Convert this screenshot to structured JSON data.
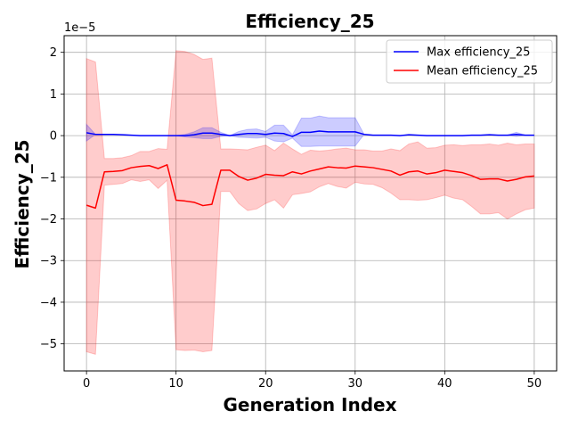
{
  "chart_data": {
    "type": "line",
    "title": "Efficiency_25",
    "xlabel": "Generation Index",
    "ylabel": "Efficiency_25",
    "y_offset_label": "1e−5",
    "xlim": [
      -2.5,
      52.5
    ],
    "ylim": [
      -5.65,
      2.4
    ],
    "xticks": [
      0,
      10,
      20,
      30,
      40,
      50
    ],
    "xtick_labels": [
      "0",
      "10",
      "20",
      "30",
      "40",
      "50"
    ],
    "yticks": [
      -5,
      -4,
      -3,
      -2,
      -1,
      0,
      1,
      2
    ],
    "ytick_labels": [
      "−5",
      "−4",
      "−3",
      "−2",
      "−1",
      "0",
      "1",
      "2"
    ],
    "grid": true,
    "legend_position": "top-right",
    "colors": {
      "max": "#0000ff",
      "mean": "#ff0000",
      "max_band": "#0000ff",
      "mean_band": "#ff0000"
    },
    "x": [
      0,
      1,
      2,
      3,
      4,
      5,
      6,
      7,
      8,
      9,
      10,
      11,
      12,
      13,
      14,
      15,
      16,
      17,
      18,
      19,
      20,
      21,
      22,
      23,
      24,
      25,
      26,
      27,
      28,
      29,
      30,
      31,
      32,
      33,
      34,
      35,
      36,
      37,
      38,
      39,
      40,
      41,
      42,
      43,
      44,
      45,
      46,
      47,
      48,
      49,
      50
    ],
    "series": [
      {
        "name": "Max efficiency_25",
        "values": [
          0.07,
          0.03,
          0.03,
          0.03,
          0.02,
          0.01,
          0.0,
          0.0,
          0.0,
          0.0,
          0.0,
          0.0,
          0.02,
          0.06,
          0.06,
          0.03,
          0.0,
          0.03,
          0.05,
          0.05,
          0.03,
          0.06,
          0.05,
          -0.02,
          0.08,
          0.08,
          0.11,
          0.09,
          0.09,
          0.09,
          0.09,
          0.03,
          0.01,
          0.01,
          0.01,
          0.0,
          0.02,
          0.01,
          0.0,
          0.0,
          0.0,
          0.0,
          0.0,
          0.01,
          0.01,
          0.02,
          0.01,
          0.01,
          0.03,
          0.01,
          0.01
        ],
        "band_upper": [
          0.27,
          0.03,
          0.03,
          0.03,
          0.02,
          0.01,
          0.0,
          0.0,
          0.0,
          0.0,
          0.0,
          0.03,
          0.09,
          0.19,
          0.19,
          0.08,
          0.0,
          0.1,
          0.15,
          0.16,
          0.1,
          0.25,
          0.25,
          0.02,
          0.42,
          0.42,
          0.47,
          0.43,
          0.43,
          0.43,
          0.43,
          0.03,
          0.01,
          0.01,
          0.01,
          0.0,
          0.02,
          0.01,
          0.0,
          0.0,
          0.0,
          0.0,
          0.0,
          0.01,
          0.01,
          0.02,
          0.01,
          0.01,
          0.08,
          0.01,
          0.01
        ],
        "band_lower": [
          -0.13,
          0.03,
          0.03,
          0.03,
          0.02,
          0.01,
          0.0,
          0.0,
          0.0,
          0.0,
          0.0,
          -0.03,
          -0.05,
          -0.07,
          -0.07,
          -0.02,
          0.0,
          -0.04,
          -0.05,
          -0.06,
          -0.04,
          -0.13,
          -0.15,
          -0.06,
          -0.26,
          -0.26,
          -0.25,
          -0.25,
          -0.25,
          -0.25,
          -0.25,
          0.03,
          0.01,
          0.01,
          0.01,
          0.0,
          0.02,
          0.01,
          0.0,
          0.0,
          0.0,
          0.0,
          0.0,
          0.01,
          0.01,
          0.02,
          0.01,
          0.01,
          -0.02,
          0.01,
          0.01
        ]
      },
      {
        "name": "Mean efficiency_25",
        "values": [
          -1.67,
          -1.74,
          -0.87,
          -0.86,
          -0.84,
          -0.77,
          -0.74,
          -0.72,
          -0.79,
          -0.7,
          -1.55,
          -1.57,
          -1.6,
          -1.68,
          -1.65,
          -0.83,
          -0.83,
          -0.98,
          -1.07,
          -1.02,
          -0.93,
          -0.95,
          -0.96,
          -0.87,
          -0.92,
          -0.85,
          -0.8,
          -0.75,
          -0.77,
          -0.78,
          -0.73,
          -0.75,
          -0.77,
          -0.81,
          -0.85,
          -0.95,
          -0.87,
          -0.85,
          -0.92,
          -0.89,
          -0.83,
          -0.86,
          -0.89,
          -0.96,
          -1.05,
          -1.04,
          -1.04,
          -1.09,
          -1.05,
          -0.99,
          -0.97
        ],
        "band_upper": [
          1.85,
          1.77,
          -0.55,
          -0.55,
          -0.53,
          -0.48,
          -0.38,
          -0.38,
          -0.31,
          -0.33,
          2.04,
          2.02,
          1.95,
          1.83,
          1.86,
          -0.32,
          -0.32,
          -0.33,
          -0.34,
          -0.28,
          -0.23,
          -0.36,
          -0.18,
          -0.32,
          -0.45,
          -0.35,
          -0.37,
          -0.35,
          -0.32,
          -0.3,
          -0.34,
          -0.34,
          -0.37,
          -0.37,
          -0.32,
          -0.36,
          -0.2,
          -0.15,
          -0.3,
          -0.29,
          -0.23,
          -0.22,
          -0.24,
          -0.22,
          -0.22,
          -0.2,
          -0.23,
          -0.18,
          -0.22,
          -0.2,
          -0.2
        ],
        "band_lower": [
          -5.19,
          -5.25,
          -1.19,
          -1.17,
          -1.15,
          -1.06,
          -1.1,
          -1.06,
          -1.27,
          -1.07,
          -5.14,
          -5.16,
          -5.15,
          -5.19,
          -5.16,
          -1.34,
          -1.34,
          -1.63,
          -1.8,
          -1.76,
          -1.63,
          -1.54,
          -1.74,
          -1.42,
          -1.39,
          -1.35,
          -1.23,
          -1.15,
          -1.22,
          -1.26,
          -1.12,
          -1.16,
          -1.17,
          -1.25,
          -1.38,
          -1.54,
          -1.54,
          -1.55,
          -1.54,
          -1.49,
          -1.43,
          -1.5,
          -1.54,
          -1.7,
          -1.88,
          -1.88,
          -1.85,
          -2.0,
          -1.88,
          -1.78,
          -1.74
        ]
      }
    ]
  }
}
